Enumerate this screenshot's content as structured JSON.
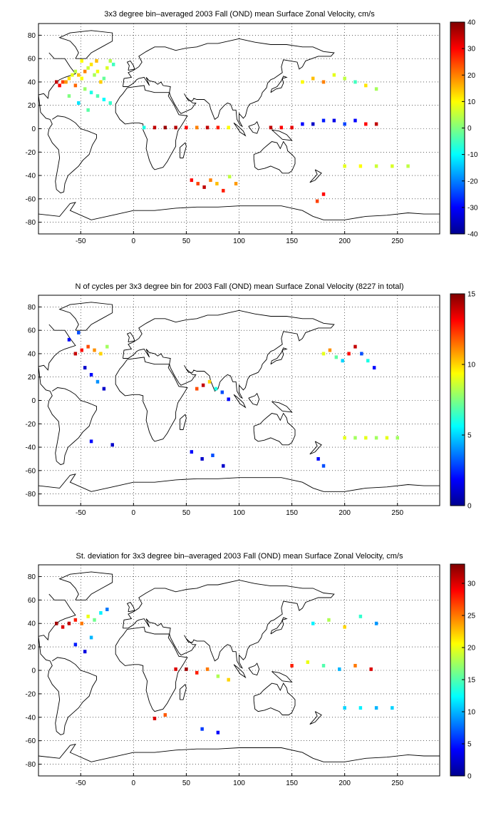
{
  "chart_data": [
    {
      "type": "heatmap",
      "title": "3x3 degree bin–averaged 2003 Fall (OND) mean Surface Zonal Velocity, cm/s",
      "xticks": [
        -50,
        0,
        50,
        100,
        150,
        200,
        250
      ],
      "yticks": [
        80,
        60,
        40,
        20,
        0,
        -20,
        -40,
        -60,
        -80
      ],
      "xlim": [
        -90,
        290
      ],
      "ylim": [
        -90,
        90
      ],
      "colorbar": {
        "min": -40,
        "max": 40,
        "ticks": [
          40,
          30,
          20,
          10,
          0,
          -10,
          -20,
          -30,
          -40
        ]
      },
      "grid": true,
      "cells": [
        {
          "x": -73,
          "y": 40,
          "v": 35
        },
        {
          "x": -70,
          "y": 37,
          "v": 30
        },
        {
          "x": -67,
          "y": 40,
          "v": 25
        },
        {
          "x": -64,
          "y": 40,
          "v": 18
        },
        {
          "x": -61,
          "y": 43,
          "v": 12
        },
        {
          "x": -58,
          "y": 46,
          "v": 8
        },
        {
          "x": -55,
          "y": 49,
          "v": 5
        },
        {
          "x": -52,
          "y": 46,
          "v": 15
        },
        {
          "x": -49,
          "y": 43,
          "v": 10
        },
        {
          "x": -46,
          "y": 49,
          "v": 20
        },
        {
          "x": -43,
          "y": 52,
          "v": 6
        },
        {
          "x": -40,
          "y": 55,
          "v": 12
        },
        {
          "x": -37,
          "y": 46,
          "v": 3
        },
        {
          "x": -34,
          "y": 49,
          "v": 9
        },
        {
          "x": -31,
          "y": 40,
          "v": 14
        },
        {
          "x": -28,
          "y": 43,
          "v": -2
        },
        {
          "x": -25,
          "y": 52,
          "v": 7
        },
        {
          "x": -22,
          "y": 58,
          "v": 4
        },
        {
          "x": -19,
          "y": 55,
          "v": -5
        },
        {
          "x": -55,
          "y": 37,
          "v": 22
        },
        {
          "x": -46,
          "y": 34,
          "v": 2
        },
        {
          "x": -40,
          "y": 31,
          "v": -8
        },
        {
          "x": -34,
          "y": 28,
          "v": -4
        },
        {
          "x": -28,
          "y": 25,
          "v": -10
        },
        {
          "x": -22,
          "y": 22,
          "v": -6
        },
        {
          "x": -61,
          "y": 28,
          "v": 0
        },
        {
          "x": -52,
          "y": 22,
          "v": -12
        },
        {
          "x": -43,
          "y": 16,
          "v": -3
        },
        {
          "x": -35,
          "y": 58,
          "v": 15
        },
        {
          "x": -49,
          "y": 58,
          "v": 10
        },
        {
          "x": 10,
          "y": 1,
          "v": -8
        },
        {
          "x": 20,
          "y": 1,
          "v": 35
        },
        {
          "x": 30,
          "y": 1,
          "v": 38
        },
        {
          "x": 40,
          "y": 1,
          "v": 36
        },
        {
          "x": 50,
          "y": 1,
          "v": 30
        },
        {
          "x": 60,
          "y": 1,
          "v": 20
        },
        {
          "x": 70,
          "y": 1,
          "v": 35
        },
        {
          "x": 80,
          "y": 1,
          "v": 28
        },
        {
          "x": 90,
          "y": 1,
          "v": 10
        },
        {
          "x": 55,
          "y": -44,
          "v": 30
        },
        {
          "x": 61,
          "y": -47,
          "v": 25
        },
        {
          "x": 67,
          "y": -50,
          "v": 35
        },
        {
          "x": 73,
          "y": -44,
          "v": 20
        },
        {
          "x": 79,
          "y": -47,
          "v": 15
        },
        {
          "x": 85,
          "y": -53,
          "v": 28
        },
        {
          "x": 91,
          "y": -41,
          "v": 5
        },
        {
          "x": 97,
          "y": -47,
          "v": 18
        },
        {
          "x": 130,
          "y": 1,
          "v": 35
        },
        {
          "x": 140,
          "y": 1,
          "v": 30
        },
        {
          "x": 150,
          "y": 1,
          "v": 32
        },
        {
          "x": 160,
          "y": 4,
          "v": -30
        },
        {
          "x": 170,
          "y": 4,
          "v": -35
        },
        {
          "x": 180,
          "y": 7,
          "v": -28
        },
        {
          "x": 190,
          "y": 7,
          "v": -32
        },
        {
          "x": 200,
          "y": 4,
          "v": -25
        },
        {
          "x": 210,
          "y": 7,
          "v": -30
        },
        {
          "x": 220,
          "y": 4,
          "v": 30
        },
        {
          "x": 230,
          "y": 4,
          "v": 35
        },
        {
          "x": 160,
          "y": 40,
          "v": 10
        },
        {
          "x": 170,
          "y": 43,
          "v": 15
        },
        {
          "x": 180,
          "y": 40,
          "v": 20
        },
        {
          "x": 190,
          "y": 46,
          "v": 8
        },
        {
          "x": 200,
          "y": 43,
          "v": 5
        },
        {
          "x": 210,
          "y": 40,
          "v": -5
        },
        {
          "x": 220,
          "y": 37,
          "v": 12
        },
        {
          "x": 230,
          "y": 34,
          "v": 3
        },
        {
          "x": 180,
          "y": -56,
          "v": 30
        },
        {
          "x": 174,
          "y": -62,
          "v": 25
        },
        {
          "x": 200,
          "y": -32,
          "v": 8
        },
        {
          "x": 215,
          "y": -32,
          "v": 10
        },
        {
          "x": 230,
          "y": -32,
          "v": 6
        },
        {
          "x": 245,
          "y": -32,
          "v": 7
        },
        {
          "x": 260,
          "y": -32,
          "v": 5
        }
      ]
    },
    {
      "type": "heatmap",
      "title": "N of cycles per 3x3 degree bin for 2003 Fall (OND) mean Surface Zonal Velocity (8227 in total)",
      "xticks": [
        -50,
        0,
        50,
        100,
        150,
        200,
        250
      ],
      "yticks": [
        80,
        60,
        40,
        20,
        0,
        -20,
        -40,
        -60,
        -80
      ],
      "xlim": [
        -90,
        290
      ],
      "ylim": [
        -90,
        90
      ],
      "colorbar": {
        "min": 0,
        "max": 15,
        "ticks": [
          15,
          10,
          5,
          0
        ]
      },
      "grid": true,
      "cells": [
        {
          "x": -55,
          "y": 40,
          "v": 14
        },
        {
          "x": -49,
          "y": 43,
          "v": 13
        },
        {
          "x": -43,
          "y": 46,
          "v": 12
        },
        {
          "x": -37,
          "y": 43,
          "v": 11
        },
        {
          "x": -31,
          "y": 40,
          "v": 10
        },
        {
          "x": -25,
          "y": 46,
          "v": 8
        },
        {
          "x": -61,
          "y": 52,
          "v": 2
        },
        {
          "x": -52,
          "y": 58,
          "v": 3
        },
        {
          "x": -46,
          "y": 28,
          "v": 1
        },
        {
          "x": -40,
          "y": 22,
          "v": 2
        },
        {
          "x": -34,
          "y": 16,
          "v": 4
        },
        {
          "x": -28,
          "y": 10,
          "v": 1
        },
        {
          "x": 60,
          "y": 10,
          "v": 12
        },
        {
          "x": 66,
          "y": 13,
          "v": 14
        },
        {
          "x": 72,
          "y": 16,
          "v": 10
        },
        {
          "x": 78,
          "y": 10,
          "v": 6
        },
        {
          "x": 84,
          "y": 7,
          "v": 3
        },
        {
          "x": 90,
          "y": 1,
          "v": 2
        },
        {
          "x": 180,
          "y": 40,
          "v": 9
        },
        {
          "x": 186,
          "y": 43,
          "v": 11
        },
        {
          "x": 192,
          "y": 37,
          "v": 7
        },
        {
          "x": 198,
          "y": 34,
          "v": 5
        },
        {
          "x": 204,
          "y": 40,
          "v": 13
        },
        {
          "x": 210,
          "y": 46,
          "v": 14
        },
        {
          "x": 216,
          "y": 40,
          "v": 3
        },
        {
          "x": 222,
          "y": 34,
          "v": 6
        },
        {
          "x": 228,
          "y": 28,
          "v": 2
        },
        {
          "x": 200,
          "y": -32,
          "v": 9
        },
        {
          "x": 210,
          "y": -32,
          "v": 8
        },
        {
          "x": 220,
          "y": -32,
          "v": 9
        },
        {
          "x": 230,
          "y": -32,
          "v": 8
        },
        {
          "x": 240,
          "y": -32,
          "v": 9
        },
        {
          "x": 250,
          "y": -32,
          "v": 8
        },
        {
          "x": 55,
          "y": -44,
          "v": 2
        },
        {
          "x": 65,
          "y": -50,
          "v": 1
        },
        {
          "x": 75,
          "y": -47,
          "v": 3
        },
        {
          "x": 85,
          "y": -56,
          "v": 1
        },
        {
          "x": -40,
          "y": -35,
          "v": 2
        },
        {
          "x": -20,
          "y": -38,
          "v": 1
        },
        {
          "x": 175,
          "y": -50,
          "v": 2
        },
        {
          "x": 180,
          "y": -56,
          "v": 3
        }
      ]
    },
    {
      "type": "heatmap",
      "title": "St. deviation for 3x3 degree bin–averaged 2003 Fall (OND) mean Surface Zonal Velocity, cm/s",
      "xticks": [
        -50,
        0,
        50,
        100,
        150,
        200,
        250
      ],
      "yticks": [
        80,
        60,
        40,
        20,
        0,
        -20,
        -40,
        -60,
        -80
      ],
      "xlim": [
        -90,
        290
      ],
      "ylim": [
        -90,
        90
      ],
      "colorbar": {
        "min": 0,
        "max": 33,
        "ticks": [
          30,
          25,
          20,
          15,
          10,
          5,
          0
        ]
      },
      "grid": true,
      "cells": [
        {
          "x": -73,
          "y": 40,
          "v": 32
        },
        {
          "x": -67,
          "y": 37,
          "v": 30
        },
        {
          "x": -61,
          "y": 40,
          "v": 31
        },
        {
          "x": -55,
          "y": 43,
          "v": 28
        },
        {
          "x": -49,
          "y": 40,
          "v": 25
        },
        {
          "x": -43,
          "y": 46,
          "v": 20
        },
        {
          "x": -37,
          "y": 43,
          "v": 16
        },
        {
          "x": -31,
          "y": 49,
          "v": 12
        },
        {
          "x": -25,
          "y": 52,
          "v": 8
        },
        {
          "x": -55,
          "y": 22,
          "v": 5
        },
        {
          "x": -46,
          "y": 16,
          "v": 3
        },
        {
          "x": -40,
          "y": 28,
          "v": 10
        },
        {
          "x": 40,
          "y": 1,
          "v": 30
        },
        {
          "x": 50,
          "y": 1,
          "v": 32
        },
        {
          "x": 60,
          "y": -2,
          "v": 28
        },
        {
          "x": 70,
          "y": 1,
          "v": 25
        },
        {
          "x": 80,
          "y": -5,
          "v": 18
        },
        {
          "x": 90,
          "y": -8,
          "v": 22
        },
        {
          "x": 20,
          "y": -41,
          "v": 30
        },
        {
          "x": 30,
          "y": -38,
          "v": 26
        },
        {
          "x": 150,
          "y": 4,
          "v": 28
        },
        {
          "x": 165,
          "y": 7,
          "v": 20
        },
        {
          "x": 180,
          "y": 4,
          "v": 15
        },
        {
          "x": 195,
          "y": 1,
          "v": 10
        },
        {
          "x": 210,
          "y": 4,
          "v": 25
        },
        {
          "x": 225,
          "y": 1,
          "v": 30
        },
        {
          "x": 170,
          "y": 40,
          "v": 12
        },
        {
          "x": 185,
          "y": 43,
          "v": 18
        },
        {
          "x": 200,
          "y": 37,
          "v": 22
        },
        {
          "x": 215,
          "y": 46,
          "v": 14
        },
        {
          "x": 230,
          "y": 40,
          "v": 9
        },
        {
          "x": 200,
          "y": -32,
          "v": 11
        },
        {
          "x": 215,
          "y": -32,
          "v": 12
        },
        {
          "x": 230,
          "y": -32,
          "v": 10
        },
        {
          "x": 245,
          "y": -32,
          "v": 11
        },
        {
          "x": 65,
          "y": -50,
          "v": 6
        },
        {
          "x": 80,
          "y": -53,
          "v": 4
        }
      ]
    }
  ]
}
